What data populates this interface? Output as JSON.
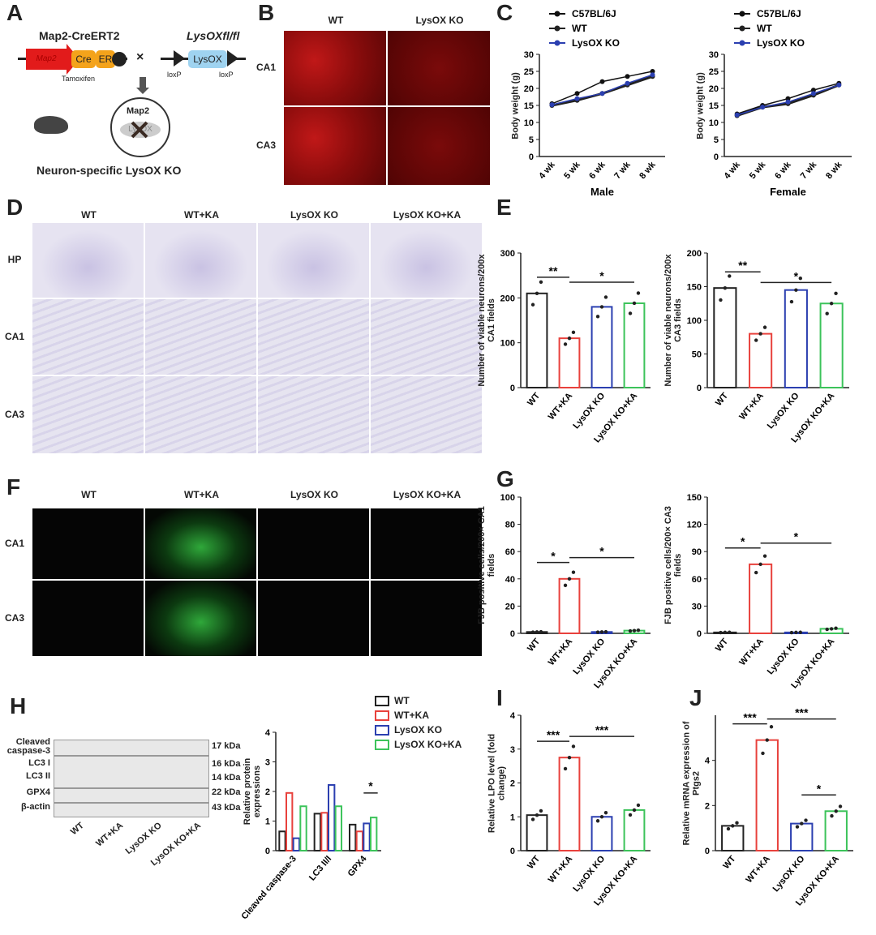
{
  "panels": {
    "A": "A",
    "B": "B",
    "C": "C",
    "D": "D",
    "E": "E",
    "F": "F",
    "G": "G",
    "H": "H",
    "I": "I",
    "J": "J"
  },
  "panelA": {
    "construct1": "Map2-CreERT2",
    "construct2": "LysOXfl/fl",
    "map2": "Map2",
    "cre": "Cre",
    "er": "ER",
    "tamoxifen": "Tamoxifen",
    "cross": "×",
    "loxp": "loxP",
    "lysox": "LysOX",
    "circle_label": "Map2",
    "deleted": "LysOX",
    "caption": "Neuron-specific LysOX KO"
  },
  "panelB": {
    "columns": [
      "WT",
      "LysOX KO"
    ],
    "rows": [
      "CA1",
      "CA3"
    ]
  },
  "panelD": {
    "columns": [
      "WT",
      "WT+KA",
      "LysOX KO",
      "LysOX KO+KA"
    ],
    "rows": [
      "HP",
      "CA1",
      "CA3"
    ]
  },
  "panelF": {
    "columns": [
      "WT",
      "WT+KA",
      "LysOX KO",
      "LysOX KO+KA"
    ],
    "rows": [
      "CA1",
      "CA3"
    ]
  },
  "panelH": {
    "bands": [
      "Cleaved caspase-3",
      "LC3 I",
      "LC3 II",
      "GPX4",
      "β-actin"
    ],
    "kda": [
      "17 kDa",
      "16 kDa",
      "14 kDa",
      "22 kDa",
      "43 kDa"
    ],
    "groups": [
      "WT",
      "WT+KA",
      "LysOX KO",
      "LysOX KO+KA"
    ]
  },
  "colors": {
    "WT": "#222222",
    "WT+KA": "#e8413c",
    "LysOX KO": "#2b3fb0",
    "LysOX KO+KA": "#3cc35a",
    "C57BL/6J": "#111111"
  },
  "legendH": [
    "WT",
    "WT+KA",
    "LysOX KO",
    "LysOX KO+KA"
  ],
  "chart_data": [
    {
      "id": "C-male",
      "type": "line",
      "xlabel": "Male",
      "ylabel": "Body weight (g)",
      "categories": [
        "4 wk",
        "5 wk",
        "6 wk",
        "7 wk",
        "8 wk"
      ],
      "ylim": [
        0,
        30
      ],
      "yticks": [
        0,
        5,
        10,
        15,
        20,
        25,
        30
      ],
      "legend": "top-left",
      "series": [
        {
          "name": "C57BL/6J",
          "values": [
            15.5,
            18.5,
            22,
            23.5,
            25
          ]
        },
        {
          "name": "WT",
          "values": [
            15,
            16.5,
            18.5,
            21,
            23.5
          ]
        },
        {
          "name": "LysOX KO",
          "values": [
            15.2,
            17,
            18.5,
            21.5,
            24
          ]
        }
      ]
    },
    {
      "id": "C-female",
      "type": "line",
      "xlabel": "Female",
      "ylabel": "Body weight (g)",
      "categories": [
        "4 wk",
        "5 wk",
        "6 wk",
        "7 wk",
        "8 wk"
      ],
      "ylim": [
        0,
        30
      ],
      "yticks": [
        0,
        5,
        10,
        15,
        20,
        25,
        30
      ],
      "legend": "top-left",
      "series": [
        {
          "name": "C57BL/6J",
          "values": [
            12.5,
            15,
            17,
            19.5,
            21.5
          ]
        },
        {
          "name": "WT",
          "values": [
            12,
            14.5,
            15.5,
            18,
            21
          ]
        },
        {
          "name": "LysOX KO",
          "values": [
            12.2,
            14.5,
            16,
            18.5,
            21
          ]
        }
      ]
    },
    {
      "id": "E-CA1",
      "type": "bar",
      "ylabel": "Number of viable neurons/200x CA1 fields",
      "categories": [
        "WT",
        "WT+KA",
        "LysOX KO",
        "LysOX KO+KA"
      ],
      "values": [
        210,
        110,
        180,
        188
      ],
      "ylim": [
        0,
        300
      ],
      "yticks": [
        0,
        100,
        200,
        300
      ],
      "sig": [
        {
          "from": 0,
          "to": 1,
          "label": "**"
        },
        {
          "from": 1,
          "to": 3,
          "label": "*"
        }
      ]
    },
    {
      "id": "E-CA3",
      "type": "bar",
      "ylabel": "Number of viable neurons/200x CA3 fields",
      "categories": [
        "WT",
        "WT+KA",
        "LysOX KO",
        "LysOX KO+KA"
      ],
      "values": [
        148,
        80,
        145,
        125
      ],
      "ylim": [
        0,
        200
      ],
      "yticks": [
        0,
        50,
        100,
        150,
        200
      ],
      "sig": [
        {
          "from": 0,
          "to": 1,
          "label": "**"
        },
        {
          "from": 1,
          "to": 3,
          "label": "*"
        }
      ]
    },
    {
      "id": "G-CA1",
      "type": "bar",
      "ylabel": "FJB positive cells/200× CA1 fields",
      "categories": [
        "WT",
        "WT+KA",
        "LysOX KO",
        "LysOX KO+KA"
      ],
      "values": [
        1,
        40,
        1,
        2
      ],
      "ylim": [
        0,
        100
      ],
      "yticks": [
        0,
        20,
        40,
        60,
        80,
        100
      ],
      "sig": [
        {
          "from": 0,
          "to": 1,
          "label": "*"
        },
        {
          "from": 1,
          "to": 3,
          "label": "*"
        }
      ]
    },
    {
      "id": "G-CA3",
      "type": "bar",
      "ylabel": "FJB positive cells/200× CA3 fields",
      "categories": [
        "WT",
        "WT+KA",
        "LysOX KO",
        "LysOX KO+KA"
      ],
      "values": [
        1,
        76,
        1,
        5
      ],
      "ylim": [
        0,
        150
      ],
      "yticks": [
        0,
        30,
        60,
        90,
        120,
        150
      ],
      "sig": [
        {
          "from": 0,
          "to": 1,
          "label": "*"
        },
        {
          "from": 1,
          "to": 3,
          "label": "*"
        }
      ]
    },
    {
      "id": "H",
      "type": "bar",
      "ylabel": "Relative protein expressions",
      "categories": [
        "Cleaved caspase-3",
        "LC3 II/I",
        "GPX4"
      ],
      "ylim": [
        0,
        4
      ],
      "yticks": [
        0,
        1,
        2,
        3,
        4
      ],
      "series": [
        {
          "name": "WT",
          "values": [
            0.65,
            1.25,
            0.88
          ]
        },
        {
          "name": "WT+KA",
          "values": [
            1.95,
            1.28,
            0.65
          ]
        },
        {
          "name": "LysOX KO",
          "values": [
            0.42,
            2.22,
            0.92
          ]
        },
        {
          "name": "LysOX KO+KA",
          "values": [
            1.5,
            1.5,
            1.12
          ]
        }
      ],
      "sig": [
        {
          "category": 2,
          "label": "*"
        }
      ]
    },
    {
      "id": "I",
      "type": "bar",
      "ylabel": "Relative LPO level (fold change)",
      "categories": [
        "WT",
        "WT+KA",
        "LysOX KO",
        "LysOX KO+KA"
      ],
      "values": [
        1.05,
        2.75,
        1.0,
        1.2
      ],
      "ylim": [
        0,
        4
      ],
      "yticks": [
        0,
        1,
        2,
        3,
        4
      ],
      "sig": [
        {
          "from": 0,
          "to": 1,
          "label": "***"
        },
        {
          "from": 1,
          "to": 3,
          "label": "***"
        }
      ]
    },
    {
      "id": "J",
      "type": "bar",
      "ylabel": "Relative mRNA expression of Ptgs2",
      "categories": [
        "WT",
        "WT+KA",
        "LysOX KO",
        "LysOX KO+KA"
      ],
      "values": [
        1.1,
        4.9,
        1.2,
        1.75
      ],
      "ylim": [
        0,
        6
      ],
      "yticks": [
        0,
        2,
        4
      ],
      "sig": [
        {
          "from": 0,
          "to": 1,
          "label": "***"
        },
        {
          "from": 1,
          "to": 3,
          "label": "***"
        },
        {
          "from": 2,
          "to": 3,
          "label": "*"
        }
      ]
    }
  ]
}
